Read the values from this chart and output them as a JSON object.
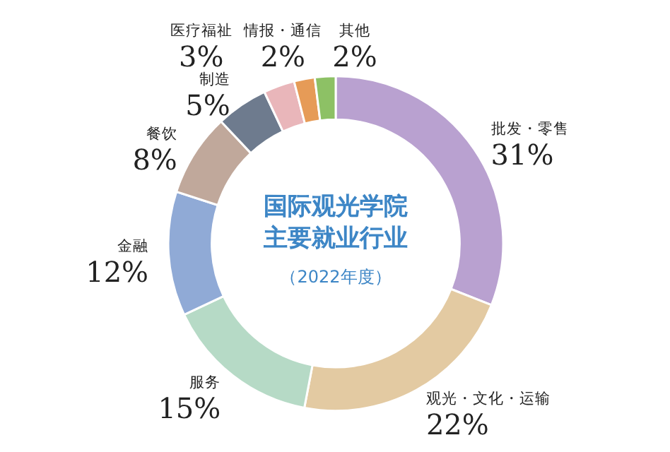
{
  "chart_data": {
    "type": "donut",
    "title": "国际观光学院主要就业行业",
    "subtitle": "（2022年度）",
    "categories": [
      "批发・零售",
      "观光・文化・运输",
      "服务",
      "金融",
      "餐饮",
      "制造",
      "医疗福祉",
      "情报・通信",
      "其他"
    ],
    "values": [
      31,
      22,
      15,
      12,
      8,
      5,
      3,
      2,
      2
    ],
    "colors": [
      "#b9a1d0",
      "#e3caa2",
      "#b6dac6",
      "#90aad6",
      "#c0a89b",
      "#6e7b8e",
      "#e9b6ba",
      "#e69b57",
      "#8dc165"
    ],
    "value_labels": [
      "31%",
      "22%",
      "15%",
      "12%",
      "8%",
      "5%",
      "3%",
      "2%",
      "2%"
    ]
  }
}
